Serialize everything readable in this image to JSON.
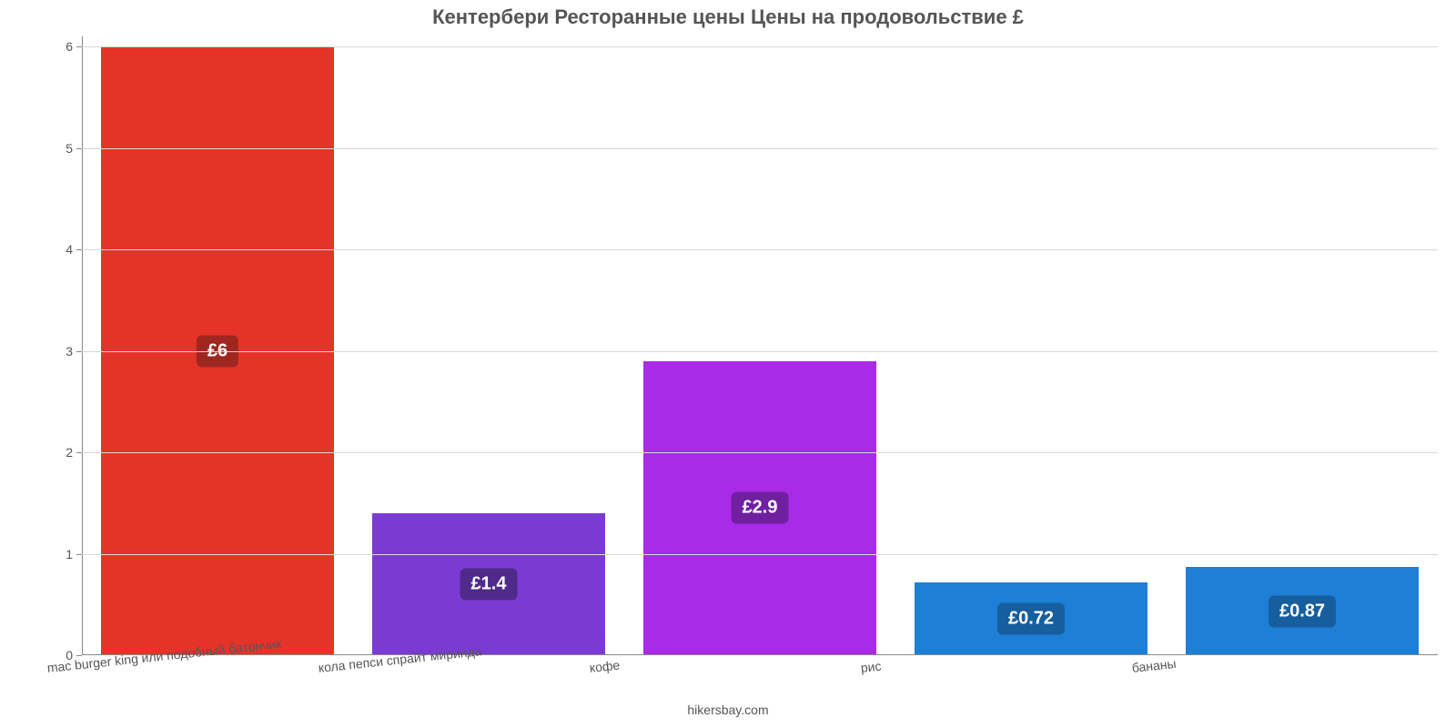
{
  "chart": {
    "type": "bar",
    "title": "Кентербери Ресторанные цены Цены на продовольствие £",
    "title_fontsize": 22,
    "title_color": "#555555",
    "background_color": "#ffffff",
    "axis_color": "#888888",
    "grid_color": "#d9d9d9",
    "ylim_min": 0,
    "ylim_max": 6.1,
    "ytick_step": 1,
    "yticks": [
      0,
      1,
      2,
      3,
      4,
      5,
      6
    ],
    "tick_fontsize": 14,
    "tick_color": "#555555",
    "bar_width_pct": 86,
    "badge_fontsize": 20,
    "badge_text_color": "#ffffff",
    "badge_radius": 6,
    "categories": [
      "mac burger king или подобный батончик",
      "кола пепси спрайт миринда",
      "кофе",
      "рис",
      "бананы"
    ],
    "values": [
      6,
      1.4,
      2.9,
      0.72,
      0.87
    ],
    "value_labels": [
      "£6",
      "£1.4",
      "£2.9",
      "£0.72",
      "£0.87"
    ],
    "bar_colors": [
      "#e6332a",
      "#7a3bd3",
      "#a82be8",
      "#1e7fd6",
      "#1e7fd6"
    ],
    "badge_colors": [
      "#a02620",
      "#4f2a8a",
      "#6f1fa0",
      "#165e9e",
      "#165e9e"
    ],
    "credit": "hikersbay.com",
    "credit_fontsize": 14,
    "credit_color": "#555555"
  }
}
